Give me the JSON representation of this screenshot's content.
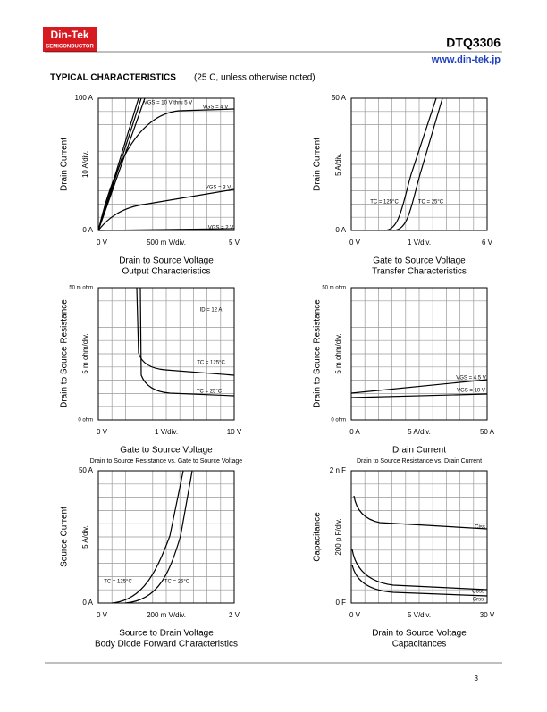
{
  "header": {
    "logo": "Din-Tek",
    "logo_sub": "SEMICONDUCTOR",
    "part": "DTQ3306",
    "url": "www.din-tek.jp"
  },
  "section": {
    "title": "TYPICAL CHARACTERISTICS",
    "note": "(25  C, unless otherwise noted)"
  },
  "charts": [
    {
      "y_title": "Drain Current",
      "y_div": "10  A/div.",
      "y_top": "100  A",
      "y_bottom": "0  A",
      "x_left": "0  V",
      "x_mid": "500 m V/div.",
      "x_right": "5  V",
      "caption": [
        "Drain to Source Voltage",
        "Output Characteristics"
      ],
      "curve_labels": [
        "VGS = 10 V thru 5 V",
        "VGS = 4 V",
        "VGS = 3 V",
        "VGS = 2 V"
      ]
    },
    {
      "y_title": "Drain Current",
      "y_div": "5  A/div.",
      "y_top": "50  A",
      "y_bottom": "0  A",
      "x_left": "0  V",
      "x_mid": "1  V/div.",
      "x_right": "6  V",
      "caption": [
        "Gate to Source Voltage",
        "Transfer Characteristics"
      ],
      "curve_labels": [
        "TC = 125°C",
        "TC = 25°C"
      ]
    },
    {
      "y_title": "Drain to Source Resistance",
      "y_div": "5 m ohm/div.",
      "y_top": "50 m ohm",
      "y_bottom": "0   ohm",
      "x_left": "0  V",
      "x_mid": "1  V/div.",
      "x_right": "10  V",
      "caption": [
        "Gate to Source Voltage",
        "Drain to Source Resistance vs. Gate to Source Voltage"
      ],
      "curve_labels": [
        "ID = 12 A",
        "TC = 125°C",
        "TC = 25°C"
      ]
    },
    {
      "y_title": "Drain to Source Resistance",
      "y_div": "5 m ohm/div.",
      "y_top": "50 m ohm",
      "y_bottom": "0   ohm",
      "x_left": "0  A",
      "x_mid": "5  A/div.",
      "x_right": "50  A",
      "caption": [
        "Drain Current",
        "Drain to Source Resistance vs. Drain Current"
      ],
      "curve_labels": [
        "VGS = 4.5 V",
        "VGS = 10 V"
      ]
    },
    {
      "y_title": "Source Current",
      "y_div": "5  A/div.",
      "y_top": "50  A",
      "y_bottom": "0  A",
      "x_left": "0  V",
      "x_mid": "200 m V/div.",
      "x_right": "2  V",
      "caption": [
        "Source to Drain Voltage",
        "Body Diode Forward Characteristics"
      ],
      "curve_labels": [
        "TC = 125°C",
        "TC = 25°C"
      ]
    },
    {
      "y_title": "Capacitance",
      "y_div": "200 p F/div.",
      "y_top": "2 n F",
      "y_bottom": "0  F",
      "x_left": "0  V",
      "x_mid": "5  V/div.",
      "x_right": "30  V",
      "caption": [
        "Drain to Source Voltage",
        "Capacitances"
      ],
      "curve_labels": [
        "Ciss",
        "Coss",
        "Crss"
      ]
    }
  ],
  "page_number": "3"
}
